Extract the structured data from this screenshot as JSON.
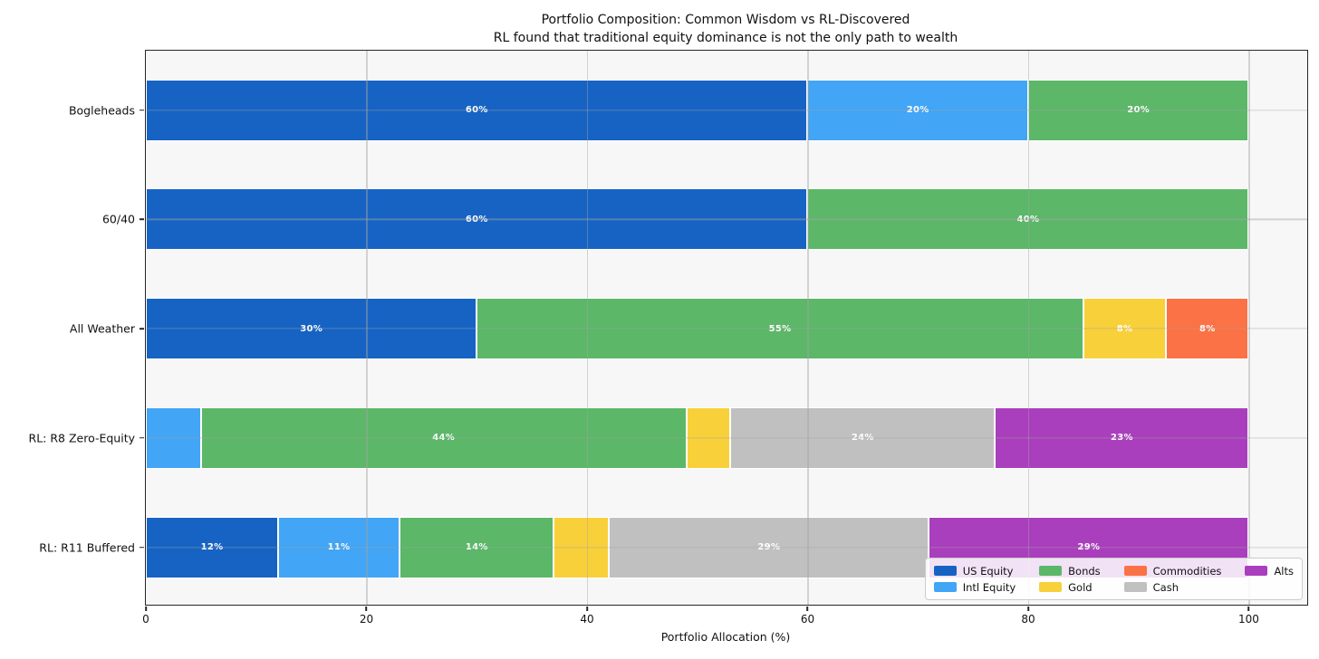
{
  "chart_data": {
    "type": "bar",
    "orientation": "horizontal",
    "stacked": true,
    "title": "Portfolio Composition: Common Wisdom vs RL-Discovered",
    "subtitle": "RL found that traditional equity dominance is not the only path to wealth",
    "xlabel": "Portfolio Allocation (%)",
    "ylabel": "",
    "xlim": [
      0,
      105.3
    ],
    "x_ticks": [
      0,
      20,
      40,
      60,
      80,
      100
    ],
    "grid": true,
    "legend_position": "lower right",
    "plot_background": "#f7f7f7",
    "categories": [
      "Bogleheads",
      "60/40",
      "All Weather",
      "RL: R8 Zero-Equity",
      "RL: R11 Buffered"
    ],
    "assets": [
      {
        "name": "US Equity",
        "color": "#1663c4"
      },
      {
        "name": "Intl Equity",
        "color": "#42a5f5"
      },
      {
        "name": "Bonds",
        "color": "#5cb768"
      },
      {
        "name": "Gold",
        "color": "#f8d03a"
      },
      {
        "name": "Commodities",
        "color": "#fb7246"
      },
      {
        "name": "Cash",
        "color": "#c0c0c0"
      },
      {
        "name": "Alts",
        "color": "#a93fbc"
      }
    ],
    "rows": [
      {
        "category": "Bogleheads",
        "segments": [
          {
            "asset": "US Equity",
            "value": 60,
            "label": "60%"
          },
          {
            "asset": "Intl Equity",
            "value": 20,
            "label": "20%"
          },
          {
            "asset": "Bonds",
            "value": 20,
            "label": "20%"
          }
        ]
      },
      {
        "category": "60/40",
        "segments": [
          {
            "asset": "US Equity",
            "value": 60,
            "label": "60%"
          },
          {
            "asset": "Bonds",
            "value": 40,
            "label": "40%"
          }
        ]
      },
      {
        "category": "All Weather",
        "segments": [
          {
            "asset": "US Equity",
            "value": 30,
            "label": "30%"
          },
          {
            "asset": "Bonds",
            "value": 55,
            "label": "55%"
          },
          {
            "asset": "Gold",
            "value": 7.5,
            "label": "8%"
          },
          {
            "asset": "Commodities",
            "value": 7.5,
            "label": "8%"
          }
        ]
      },
      {
        "category": "RL: R8 Zero-Equity",
        "segments": [
          {
            "asset": "Intl Equity",
            "value": 5,
            "label": ""
          },
          {
            "asset": "Bonds",
            "value": 44,
            "label": "44%"
          },
          {
            "asset": "Gold",
            "value": 4,
            "label": ""
          },
          {
            "asset": "Cash",
            "value": 24,
            "label": "24%"
          },
          {
            "asset": "Alts",
            "value": 23,
            "label": "23%"
          }
        ]
      },
      {
        "category": "RL: R11 Buffered",
        "segments": [
          {
            "asset": "US Equity",
            "value": 12,
            "label": "12%"
          },
          {
            "asset": "Intl Equity",
            "value": 11,
            "label": "11%"
          },
          {
            "asset": "Bonds",
            "value": 14,
            "label": "14%"
          },
          {
            "asset": "Gold",
            "value": 5,
            "label": ""
          },
          {
            "asset": "Cash",
            "value": 29,
            "label": "29%"
          },
          {
            "asset": "Alts",
            "value": 29,
            "label": "29%"
          }
        ]
      }
    ]
  }
}
